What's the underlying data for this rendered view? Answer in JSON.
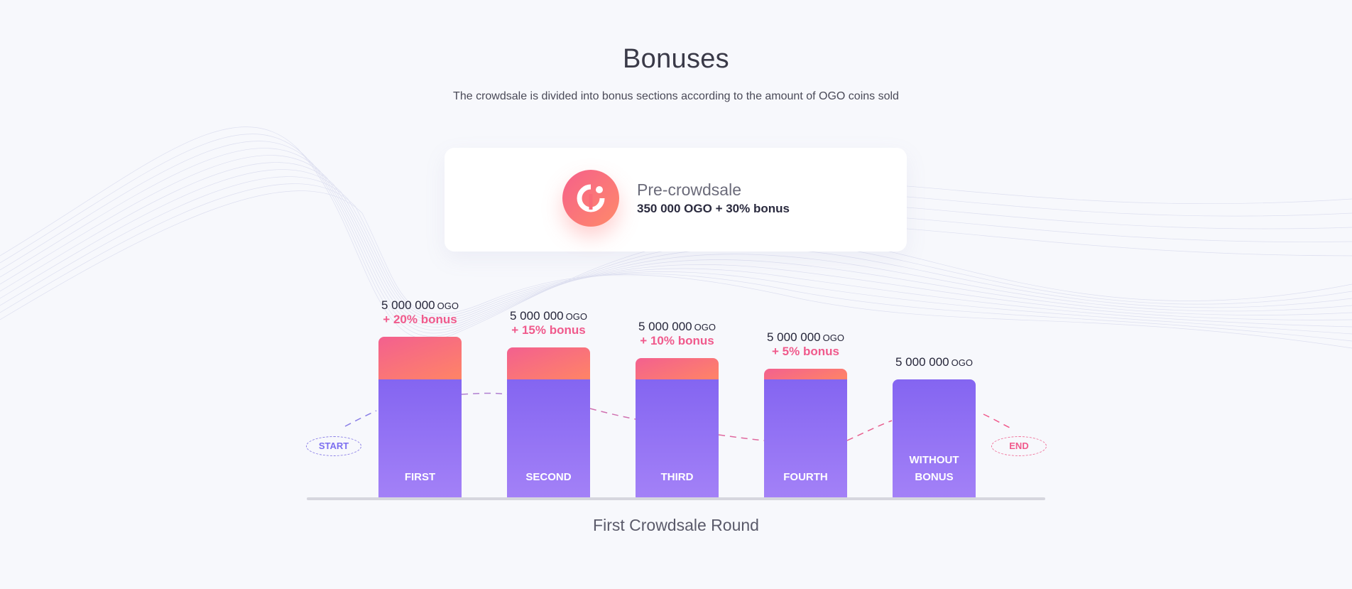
{
  "header": {
    "title": "Bonuses",
    "subtitle": "The crowdsale is divided into bonus sections according to the amount of OGO coins sold"
  },
  "presale": {
    "title": "Pre-crowdsale",
    "detail": "350 000 OGO + 30% bonus",
    "icon": "ogo-logo-icon"
  },
  "colors": {
    "bar_body": "#8465f1",
    "bar_bonus": "#f3608f",
    "bonus_text": "#f05a8c",
    "start_pill": "#7c6ff0",
    "end_pill": "#f05a8c"
  },
  "timeline": {
    "start_label": "START",
    "end_label": "END",
    "round_title": "First Crowdsale Round"
  },
  "chart_data": {
    "type": "bar",
    "categories": [
      "FIRST",
      "SECOND",
      "THIRD",
      "FOURTH",
      "WITHOUT BONUS"
    ],
    "amounts": [
      "5 000 000",
      "5 000 000",
      "5 000 000",
      "5 000 000",
      "5 000 000"
    ],
    "unit": "OGO",
    "bonus_labels": [
      "+ 20% bonus",
      "+ 15% bonus",
      "+ 10% bonus",
      "+ 5% bonus",
      ""
    ],
    "bonus_percent": [
      20,
      15,
      10,
      5,
      0
    ]
  }
}
